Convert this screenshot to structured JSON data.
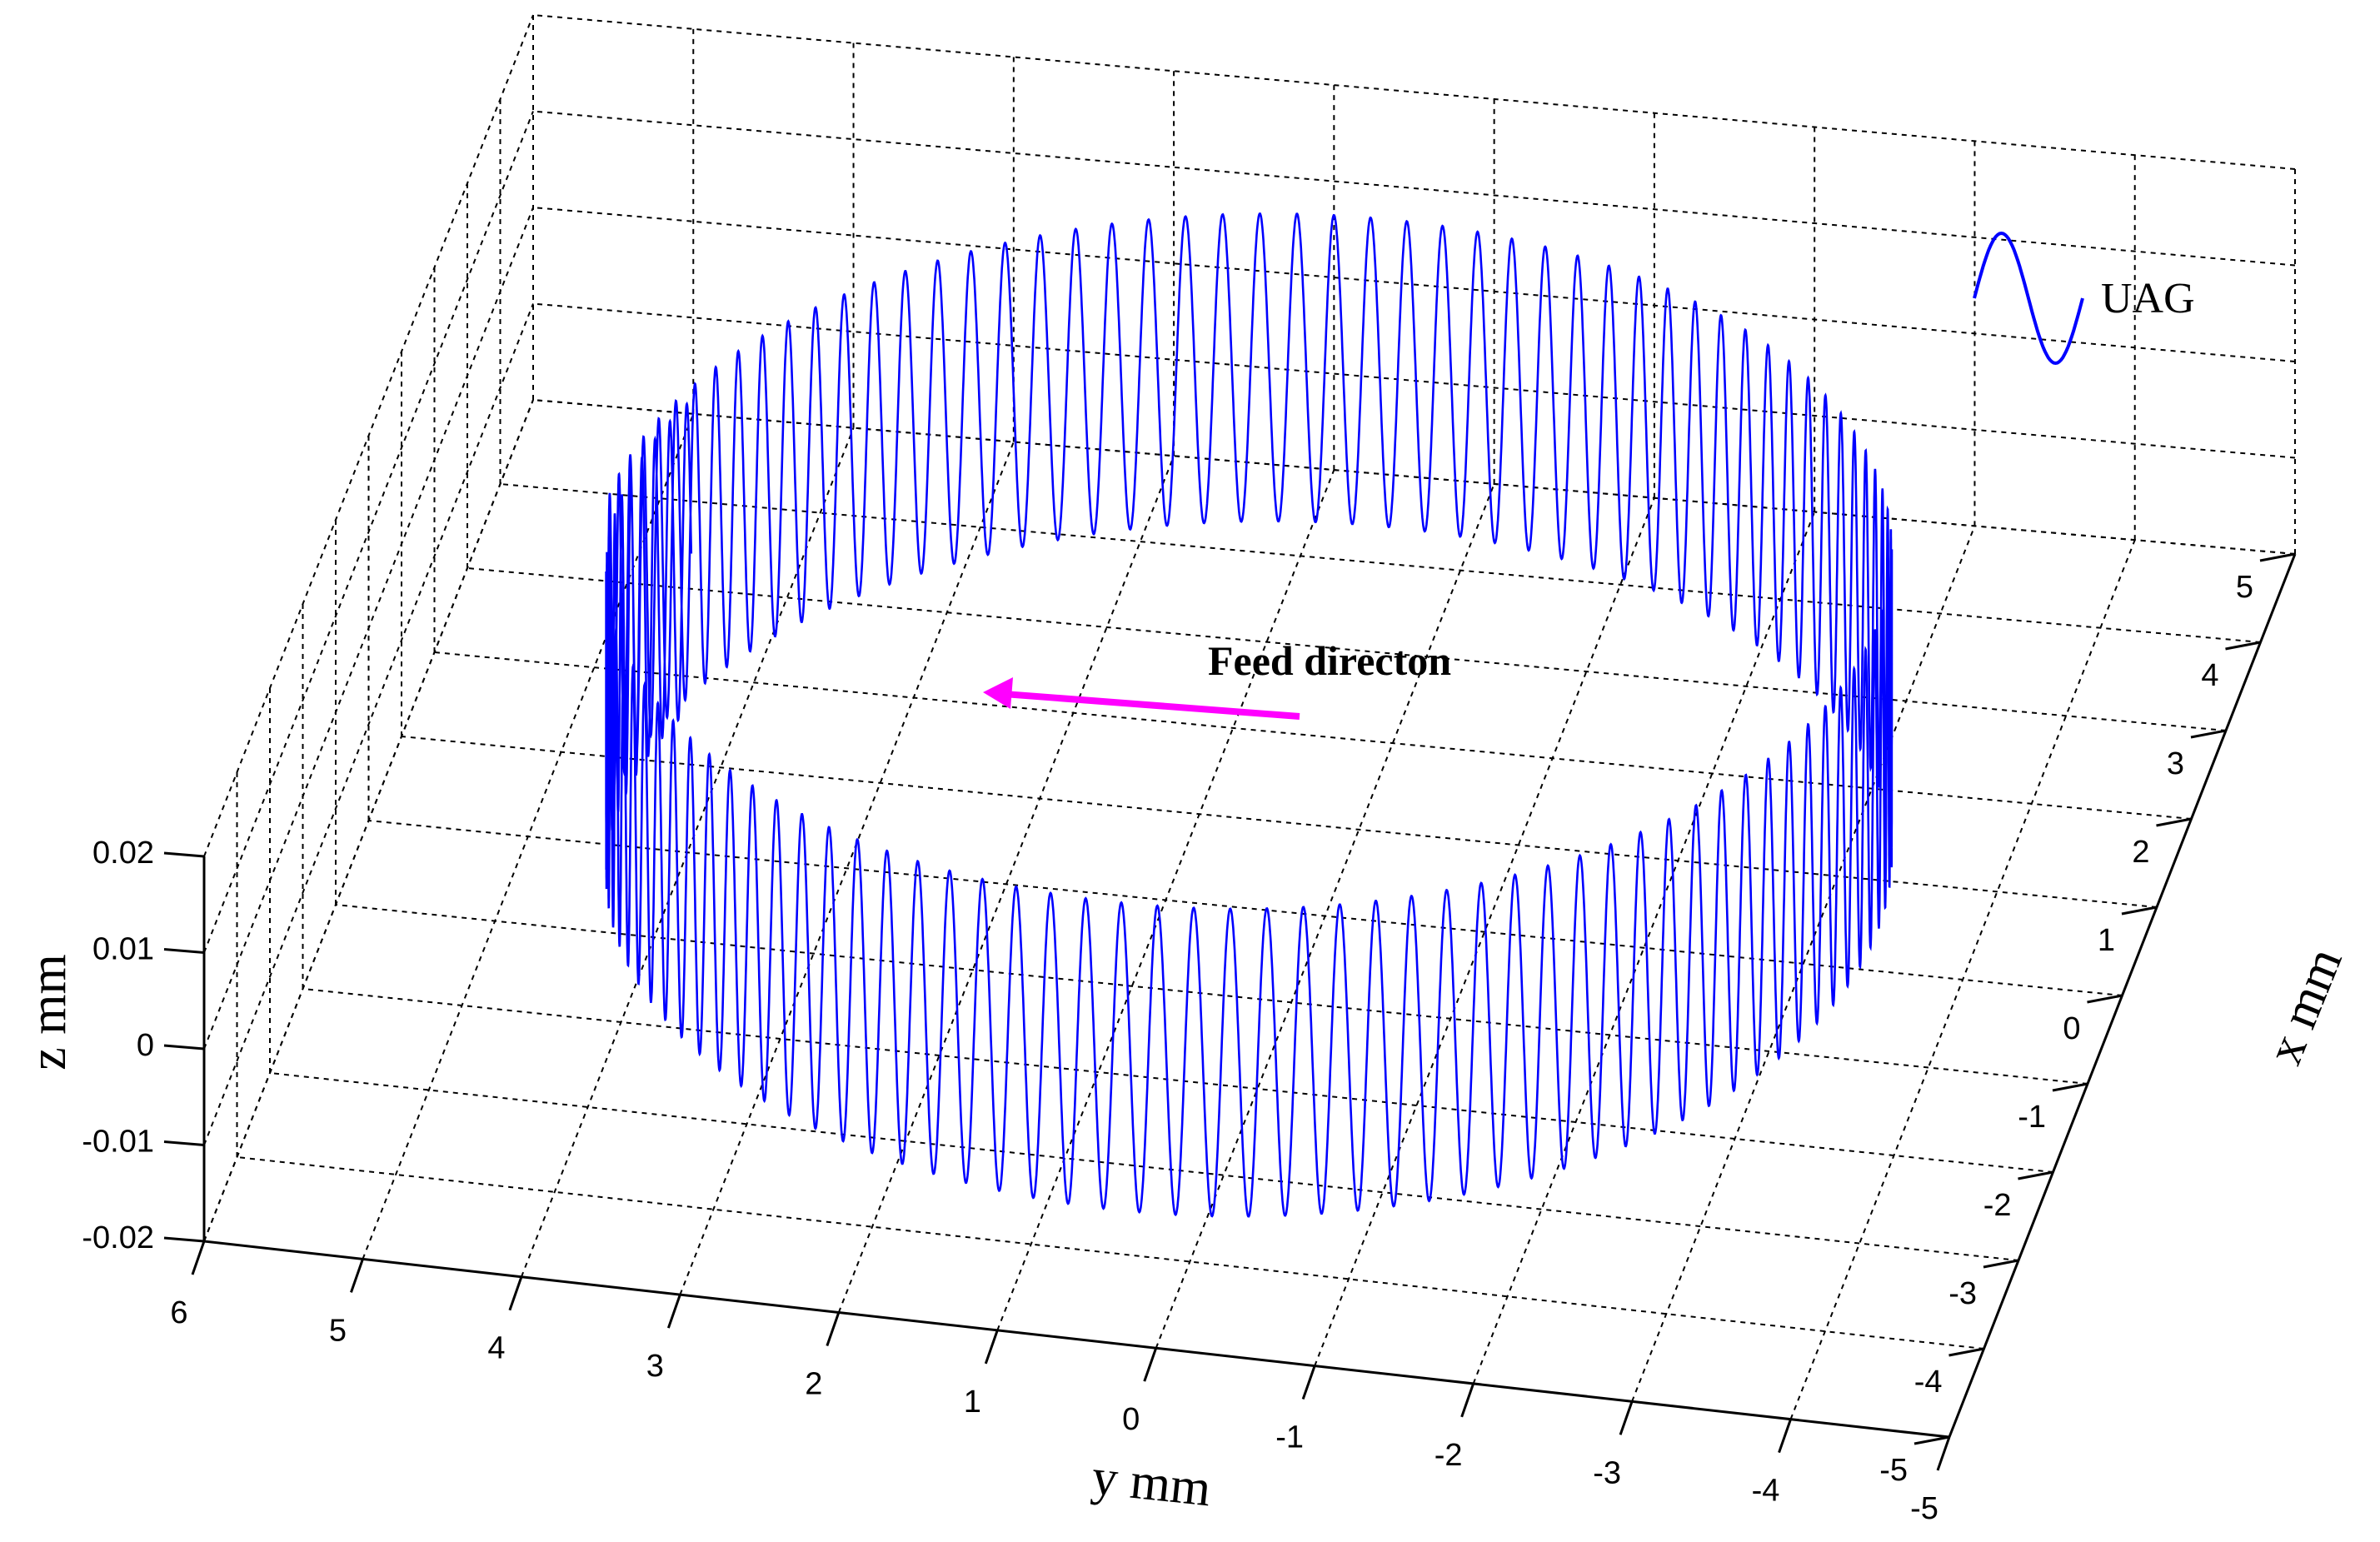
{
  "chart_data": {
    "type": "line3d",
    "title": "",
    "xlabel": "x mm",
    "ylabel": "y mm",
    "zlabel": "z mm",
    "xlim": [
      -5,
      5
    ],
    "ylim": [
      -5,
      6
    ],
    "zlim": [
      -0.02,
      0.02
    ],
    "x_ticks": [
      "-5",
      "-4",
      "-3",
      "-2",
      "-1",
      "0",
      "1",
      "2",
      "3",
      "4",
      "5"
    ],
    "y_ticks": [
      "6",
      "5",
      "4",
      "3",
      "2",
      "1",
      "0",
      "-1",
      "-2",
      "-3",
      "-4",
      "-5"
    ],
    "z_ticks": [
      "0.02",
      "0.01",
      "0",
      "-0.01",
      "-0.02"
    ],
    "grid": true,
    "series": [
      {
        "name": "UAG",
        "color": "#0000ff",
        "center": {
          "x": 0,
          "y": 0.5
        },
        "radius": 4,
        "turns": 1.05,
        "oscillations_per_turn": 110,
        "amplitude": 0.016
      }
    ],
    "legend": {
      "label": "UAG",
      "position": "top-right"
    },
    "annotation": {
      "text": "Feed directon",
      "arrow_color": "#ff00ff"
    }
  }
}
